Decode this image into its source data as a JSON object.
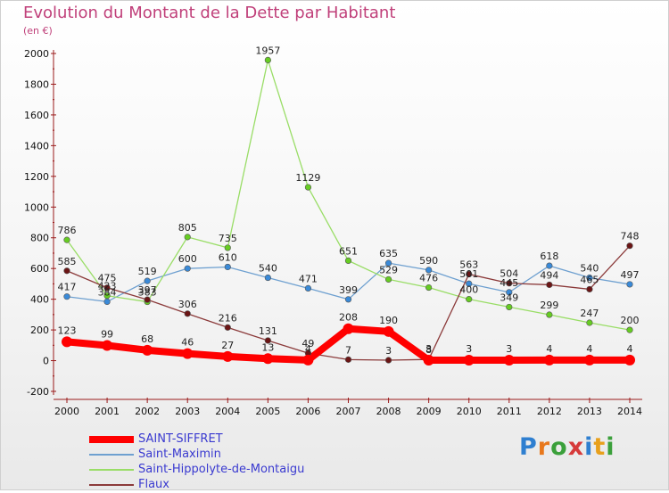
{
  "header": {
    "title": "Evolution du Montant de la Dette par Habitant",
    "unit": "(en €)"
  },
  "logo": {
    "text": "Proxiti"
  },
  "chart_data": {
    "type": "line",
    "title": "Evolution du Montant de la Dette par Habitant",
    "ylabel": "(en €)",
    "xlabel": "",
    "ylim": [
      -200,
      2000
    ],
    "yticks": [
      -200,
      0,
      200,
      400,
      600,
      800,
      1000,
      1200,
      1400,
      1600,
      1800,
      2000
    ],
    "categories": [
      "2000",
      "2001",
      "2002",
      "2003",
      "2004",
      "2005",
      "2006",
      "2007",
      "2008",
      "2009",
      "2010",
      "2011",
      "2012",
      "2013",
      "2014"
    ],
    "grid": false,
    "legend_position": "bottom-left",
    "series": [
      {
        "name": "SAINT-SIFFRET",
        "color": "#ff0000",
        "point_color": "#ff0000",
        "emphasis": true,
        "values": [
          123,
          99,
          68,
          46,
          27,
          13,
          4,
          208,
          190,
          3,
          3,
          3,
          4,
          4,
          4
        ]
      },
      {
        "name": "Saint-Maximin",
        "color": "#6ea0d0",
        "point_color": "#3a8ad8",
        "values": [
          417,
          384,
          519,
          600,
          610,
          540,
          471,
          399,
          635,
          590,
          501,
          445,
          618,
          540,
          497
        ]
      },
      {
        "name": "Saint-Hippolyte-de-Montaigu",
        "color": "#99dd66",
        "point_color": "#66cc22",
        "values": [
          786,
          423,
          383,
          805,
          735,
          1957,
          1129,
          651,
          529,
          476,
          400,
          349,
          299,
          247,
          200
        ]
      },
      {
        "name": "Flaux",
        "color": "#8b3a3a",
        "point_color": "#6b1515",
        "values": [
          585,
          475,
          397,
          306,
          216,
          131,
          49,
          7,
          3,
          8,
          563,
          504,
          494,
          465,
          748
        ]
      }
    ]
  }
}
